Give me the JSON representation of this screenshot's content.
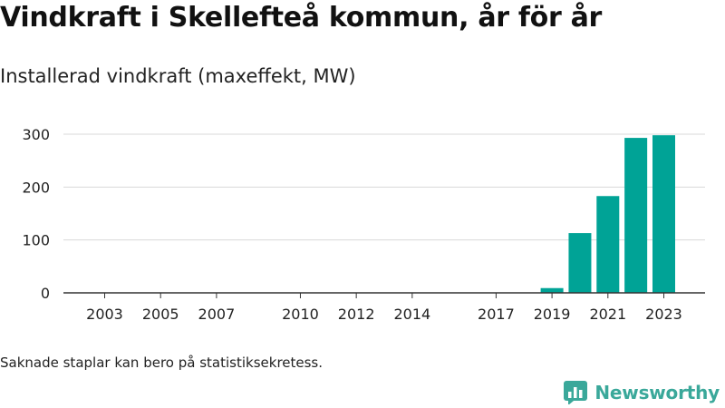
{
  "title": "Vindkraft i Skellefteå kommun, år för år",
  "subtitle": "Installerad vindkraft (maxeffekt, MW)",
  "note": "Saknade staplar kan bero på statistiksekretess.",
  "brand": {
    "name": "Newsworthy",
    "icon": "newsworthy-logo-icon",
    "color": "#3aa89a"
  },
  "chart_data": {
    "type": "bar",
    "title": "",
    "xlabel": "",
    "ylabel": "",
    "categories": [
      "2003",
      "2004",
      "2005",
      "2006",
      "2007",
      "2008",
      "2009",
      "2010",
      "2011",
      "2012",
      "2013",
      "2014",
      "2015",
      "2016",
      "2017",
      "2018",
      "2019",
      "2020",
      "2021",
      "2022",
      "2023"
    ],
    "values": [
      0,
      0,
      0,
      0,
      0,
      0,
      0,
      0,
      0,
      0,
      0,
      0,
      0,
      0,
      0,
      0,
      9,
      113,
      183,
      293,
      298
    ],
    "x_tick_labels": [
      "2003",
      "2005",
      "2007",
      "2010",
      "2012",
      "2014",
      "2017",
      "2019",
      "2021",
      "2023"
    ],
    "y_ticks": [
      0,
      100,
      200,
      300
    ],
    "ylim": [
      0,
      300
    ],
    "bar_color": "#00a396",
    "grid": true
  }
}
